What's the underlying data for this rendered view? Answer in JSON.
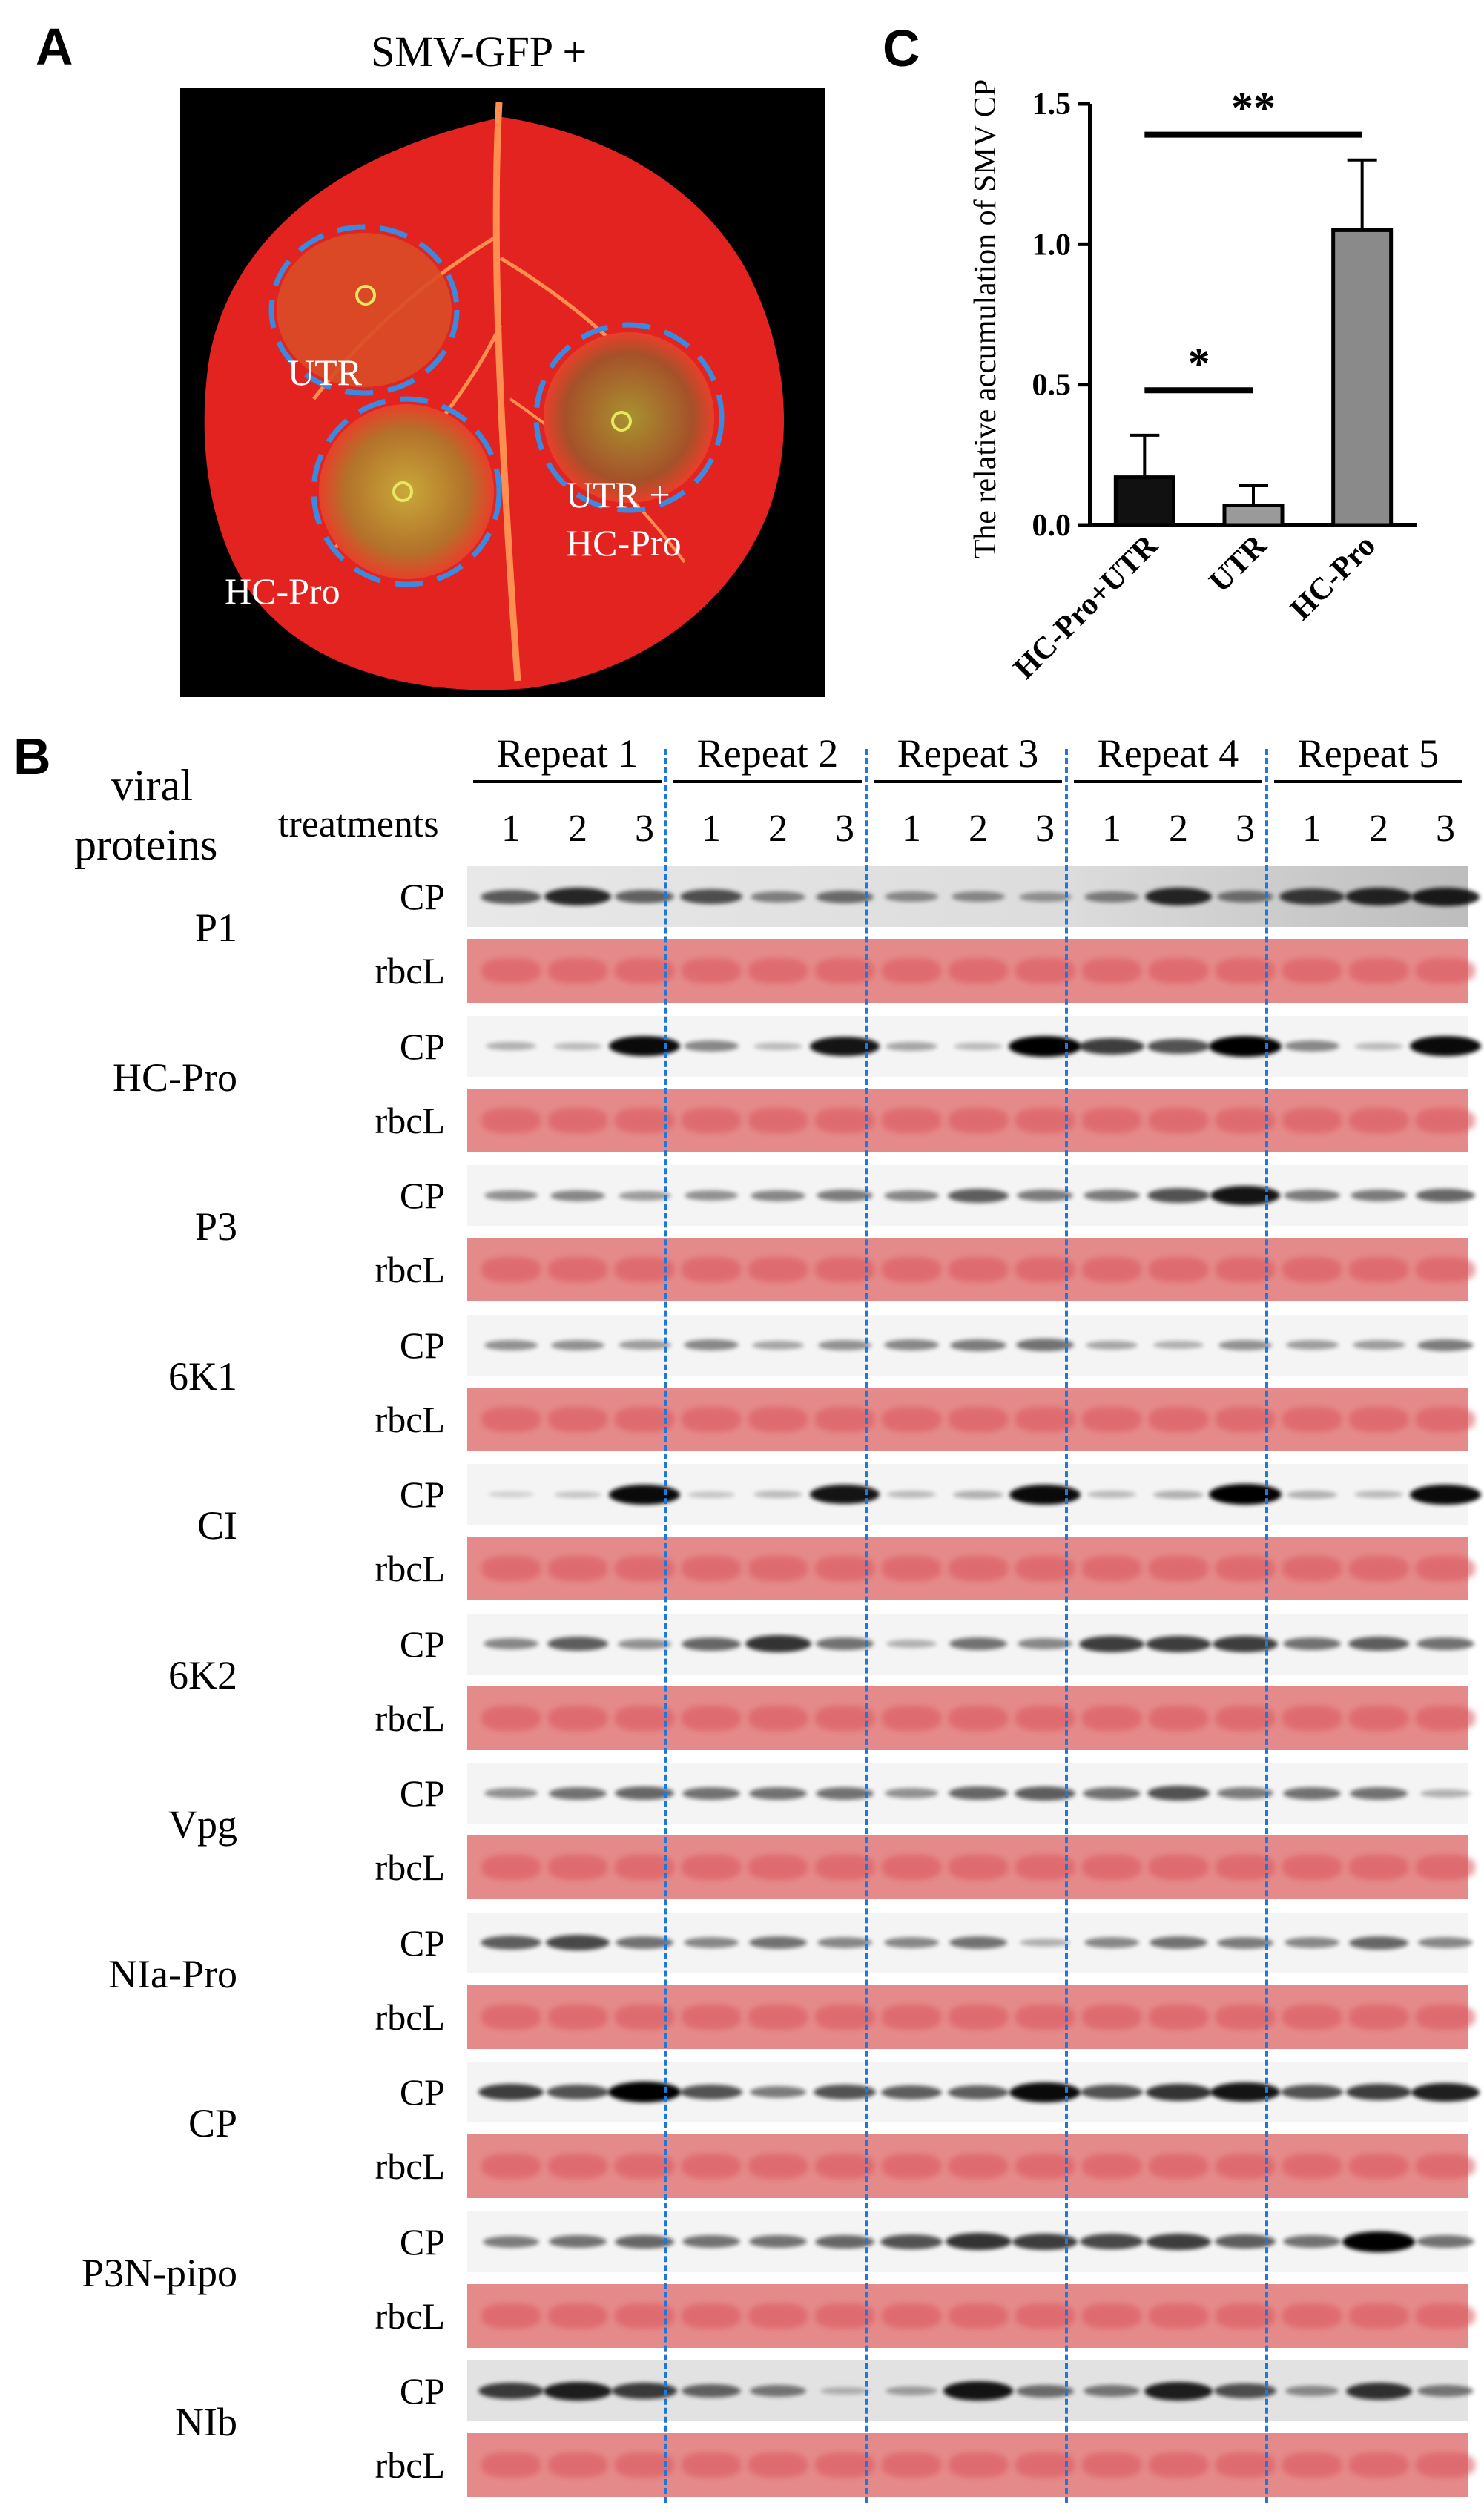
{
  "panels": {
    "a": "A",
    "b": "B",
    "c": "C"
  },
  "panel_a": {
    "title": "SMV-GFP +",
    "labels": {
      "utr": "UTR",
      "utr_hcpro_1": "UTR +",
      "utr_hcpro_2": "HC-Pro",
      "hcpro": "HC-Pro"
    }
  },
  "panel_b": {
    "header_left_1": "viral",
    "header_left_2": "proteins",
    "treatments_label": "treatments",
    "repeats": [
      "Repeat 1",
      "Repeat 2",
      "Repeat 3",
      "Repeat 4",
      "Repeat 5"
    ],
    "treatment_numbers": [
      "1",
      "2",
      "3"
    ],
    "row_labels": {
      "cp": "CP",
      "rbcl": "rbcL"
    },
    "proteins": [
      "P1",
      "HC-Pro",
      "P3",
      "6K1",
      "CI",
      "6K2",
      "Vpg",
      "NIa-Pro",
      "CP",
      "P3N-pipo",
      "NIb"
    ]
  },
  "chart_data": {
    "type": "bar",
    "title": "",
    "ylabel": "The relative accumulation of SMV CP",
    "xlabel": "",
    "categories": [
      "HC-Pro+UTR",
      "UTR",
      "HC-Pro"
    ],
    "values": [
      0.17,
      0.07,
      1.05
    ],
    "errors": [
      0.15,
      0.07,
      0.25
    ],
    "bar_colors": [
      "#111111",
      "#9a9a9a",
      "#8a8a8a"
    ],
    "ylim": [
      0,
      1.5
    ],
    "yticks": [
      "0.0",
      "0.5",
      "1.0",
      "1.5"
    ],
    "significance": [
      {
        "label": "*",
        "between": [
          "HC-Pro+UTR",
          "UTR"
        ]
      },
      {
        "label": "**",
        "between": [
          "HC-Pro+UTR",
          "HC-Pro"
        ]
      }
    ]
  }
}
